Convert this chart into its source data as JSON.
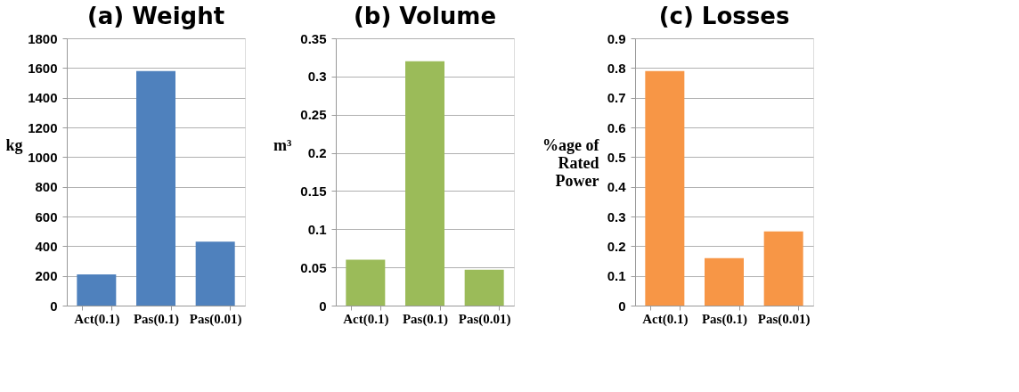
{
  "chart_data": [
    {
      "type": "bar",
      "title": "(a) Weight",
      "ylabel": "kg",
      "categories": [
        "Act(0.1)",
        "Pas(0.1)",
        "Pas(0.01)"
      ],
      "values": [
        210,
        1580,
        430
      ],
      "color": "#4f81bd",
      "ylim": [
        0,
        1800
      ],
      "yticks": [
        0,
        200,
        400,
        600,
        800,
        1000,
        1200,
        1400,
        1600,
        1800
      ],
      "grid": "y",
      "legend": false
    },
    {
      "type": "bar",
      "title": "(b) Volume",
      "ylabel": "m³",
      "categories": [
        "Act(0.1)",
        "Pas(0.1)",
        "Pas(0.01)"
      ],
      "values": [
        0.06,
        0.32,
        0.047
      ],
      "color": "#9bbb59",
      "ylim": [
        0,
        0.35
      ],
      "yticks": [
        0,
        0.05,
        0.1,
        0.15,
        0.2,
        0.25,
        0.3,
        0.35
      ],
      "grid": "y",
      "legend": false
    },
    {
      "type": "bar",
      "title": "(c) Losses",
      "ylabel": "%age of\nRated\nPower",
      "categories": [
        "Act(0.1)",
        "Pas(0.1)",
        "Pas(0.01)"
      ],
      "values": [
        0.79,
        0.16,
        0.25
      ],
      "color": "#f79646",
      "ylim": [
        0,
        0.9
      ],
      "yticks": [
        0,
        0.1,
        0.2,
        0.3,
        0.4,
        0.5,
        0.6,
        0.7,
        0.8,
        0.9
      ],
      "grid": "y",
      "legend": false
    }
  ]
}
